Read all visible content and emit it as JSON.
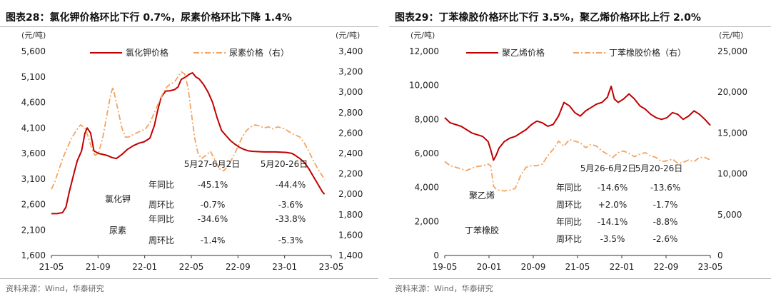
{
  "chart_data": [
    {
      "type": "line",
      "title": "图表28：氯化钾价格环比下行 0.7%，尿素价格环比下降 1.4%",
      "source": "资料来源：Wind，华泰研究",
      "y_unit_left": "(元/吨)",
      "y_unit_right": "(元/吨)",
      "ylim_left": [
        1600,
        5600
      ],
      "ylim_right": [
        1400,
        3400
      ],
      "yticks_left": [
        "1,600",
        "2,100",
        "2,600",
        "3,100",
        "3,600",
        "4,100",
        "4,600",
        "5,100",
        "5,600"
      ],
      "yticks_right": [
        "1,400",
        "1,600",
        "1,800",
        "2,000",
        "2,200",
        "2,400",
        "2,600",
        "2,800",
        "3,000",
        "3,200",
        "3,400"
      ],
      "xticks": [
        "21-05",
        "21-09",
        "22-01",
        "22-05",
        "22-09",
        "23-01",
        "23-05"
      ],
      "x_range_months": [
        0,
        25
      ],
      "series": [
        {
          "name": "氯化钾价格",
          "axis": "left",
          "style": "solid",
          "color": "#c00000",
          "points": [
            [
              0,
              2420
            ],
            [
              0.5,
              2420
            ],
            [
              1,
              2440
            ],
            [
              1.3,
              2550
            ],
            [
              1.6,
              2850
            ],
            [
              2,
              3200
            ],
            [
              2.3,
              3450
            ],
            [
              2.7,
              3650
            ],
            [
              3,
              4000
            ],
            [
              3.2,
              4100
            ],
            [
              3.5,
              4000
            ],
            [
              3.8,
              3650
            ],
            [
              4.2,
              3600
            ],
            [
              4.6,
              3580
            ],
            [
              5,
              3560
            ],
            [
              5.4,
              3520
            ],
            [
              5.8,
              3500
            ],
            [
              6.3,
              3580
            ],
            [
              6.8,
              3680
            ],
            [
              7.3,
              3750
            ],
            [
              7.8,
              3800
            ],
            [
              8.3,
              3830
            ],
            [
              8.8,
              3900
            ],
            [
              9.2,
              4150
            ],
            [
              9.5,
              4450
            ],
            [
              9.8,
              4700
            ],
            [
              10.2,
              4820
            ],
            [
              10.6,
              4830
            ],
            [
              11,
              4850
            ],
            [
              11.3,
              4900
            ],
            [
              11.6,
              5050
            ],
            [
              12,
              5100
            ],
            [
              12.3,
              5150
            ],
            [
              12.6,
              5180
            ],
            [
              12.9,
              5100
            ],
            [
              13.2,
              5060
            ],
            [
              13.6,
              4950
            ],
            [
              14,
              4800
            ],
            [
              14.4,
              4600
            ],
            [
              14.8,
              4300
            ],
            [
              15.2,
              4050
            ],
            [
              15.6,
              3950
            ],
            [
              16,
              3850
            ],
            [
              16.4,
              3780
            ],
            [
              16.8,
              3720
            ],
            [
              17.2,
              3680
            ],
            [
              17.6,
              3650
            ],
            [
              18,
              3640
            ],
            [
              19,
              3630
            ],
            [
              20,
              3630
            ],
            [
              21,
              3620
            ],
            [
              21.5,
              3600
            ],
            [
              21.8,
              3560
            ],
            [
              22.2,
              3500
            ],
            [
              22.6,
              3420
            ],
            [
              23,
              3300
            ],
            [
              23.4,
              3150
            ],
            [
              23.8,
              3000
            ],
            [
              24.2,
              2850
            ],
            [
              24.4,
              2800
            ]
          ]
        },
        {
          "name": "尿素价格（右）",
          "axis": "right",
          "style": "dashdot",
          "color": "#f4a460",
          "points": [
            [
              0,
              2050
            ],
            [
              0.3,
              2120
            ],
            [
              0.7,
              2250
            ],
            [
              1,
              2350
            ],
            [
              1.4,
              2450
            ],
            [
              1.8,
              2550
            ],
            [
              2.2,
              2620
            ],
            [
              2.6,
              2680
            ],
            [
              3,
              2650
            ],
            [
              3.3,
              2560
            ],
            [
              3.6,
              2450
            ],
            [
              3.9,
              2380
            ],
            [
              4.2,
              2400
            ],
            [
              4.6,
              2560
            ],
            [
              5,
              2800
            ],
            [
              5.3,
              2980
            ],
            [
              5.5,
              3050
            ],
            [
              5.7,
              2950
            ],
            [
              6,
              2800
            ],
            [
              6.3,
              2650
            ],
            [
              6.6,
              2560
            ],
            [
              6.9,
              2560
            ],
            [
              7.2,
              2580
            ],
            [
              7.6,
              2600
            ],
            [
              8,
              2620
            ],
            [
              8.4,
              2640
            ],
            [
              8.8,
              2700
            ],
            [
              9.2,
              2800
            ],
            [
              9.6,
              2900
            ],
            [
              10,
              3000
            ],
            [
              10.3,
              3050
            ],
            [
              10.6,
              3080
            ],
            [
              11,
              3100
            ],
            [
              11.3,
              3150
            ],
            [
              11.6,
              3200
            ],
            [
              11.9,
              3180
            ],
            [
              12.2,
              3050
            ],
            [
              12.5,
              2800
            ],
            [
              12.8,
              2550
            ],
            [
              13.1,
              2400
            ],
            [
              13.4,
              2350
            ],
            [
              13.8,
              2380
            ],
            [
              14.2,
              2420
            ],
            [
              14.6,
              2340
            ],
            [
              15,
              2250
            ],
            [
              15.4,
              2230
            ],
            [
              15.8,
              2280
            ],
            [
              16.2,
              2360
            ],
            [
              16.6,
              2450
            ],
            [
              17,
              2550
            ],
            [
              17.4,
              2620
            ],
            [
              17.8,
              2660
            ],
            [
              18.2,
              2680
            ],
            [
              18.6,
              2670
            ],
            [
              19,
              2650
            ],
            [
              19.4,
              2660
            ],
            [
              19.8,
              2640
            ],
            [
              20.2,
              2660
            ],
            [
              20.6,
              2650
            ],
            [
              21,
              2630
            ],
            [
              21.4,
              2600
            ],
            [
              21.8,
              2580
            ],
            [
              22.2,
              2560
            ],
            [
              22.6,
              2500
            ],
            [
              23,
              2420
            ],
            [
              23.4,
              2330
            ],
            [
              23.8,
              2250
            ],
            [
              24.2,
              2180
            ],
            [
              24.4,
              2140
            ]
          ]
        }
      ],
      "legend": [
        "氯化钾价格",
        "尿素价格（右）"
      ],
      "table": {
        "periods": [
          "5月27-6月2日",
          "5月20-26日"
        ],
        "rows": [
          {
            "product": "氯化钾",
            "metric": "年同比",
            "values": [
              "-45.1%",
              "-44.4%"
            ]
          },
          {
            "product": "",
            "metric": "周环比",
            "values": [
              "-0.7%",
              "-3.6%"
            ]
          },
          {
            "product": "尿素",
            "metric": "年同比",
            "values": [
              "-34.6%",
              "-33.8%"
            ]
          },
          {
            "product": "",
            "metric": "周环比",
            "values": [
              "-1.4%",
              "-5.3%"
            ]
          }
        ]
      }
    },
    {
      "type": "line",
      "title": "图表29：丁苯橡胶价格环比下行 3.5%，聚乙烯价格环比上行 2.0%",
      "source": "资料来源：Wind，华泰研究",
      "y_unit_left": "(元/吨)",
      "y_unit_right": "(元/吨)",
      "ylim_left": [
        0,
        12000
      ],
      "ylim_right": [
        0,
        25000
      ],
      "yticks_left": [
        "0",
        "2,000",
        "4,000",
        "6,000",
        "8,000",
        "10,000",
        "12,000"
      ],
      "yticks_right": [
        "0",
        "5,000",
        "10,000",
        "15,000",
        "20,000",
        "25,000"
      ],
      "xticks": [
        "19-05",
        "20-01",
        "20-09",
        "21-05",
        "22-01",
        "22-09",
        "23-05"
      ],
      "x_range_months": [
        0,
        49
      ],
      "series": [
        {
          "name": "聚乙烯价格",
          "axis": "left",
          "style": "solid",
          "color": "#c00000",
          "points": [
            [
              0,
              8100
            ],
            [
              1,
              7800
            ],
            [
              2,
              7700
            ],
            [
              3,
              7600
            ],
            [
              4,
              7400
            ],
            [
              5,
              7200
            ],
            [
              6,
              7100
            ],
            [
              7,
              7000
            ],
            [
              8,
              6700
            ],
            [
              8.5,
              6200
            ],
            [
              9,
              5600
            ],
            [
              9.5,
              5900
            ],
            [
              10,
              6300
            ],
            [
              11,
              6700
            ],
            [
              12,
              6900
            ],
            [
              13,
              7000
            ],
            [
              14,
              7200
            ],
            [
              15,
              7400
            ],
            [
              16,
              7700
            ],
            [
              17,
              7900
            ],
            [
              18,
              7800
            ],
            [
              19,
              7600
            ],
            [
              20,
              7700
            ],
            [
              21,
              8200
            ],
            [
              22,
              9000
            ],
            [
              23,
              8800
            ],
            [
              24,
              8400
            ],
            [
              25,
              8200
            ],
            [
              26,
              8500
            ],
            [
              27,
              8700
            ],
            [
              28,
              8900
            ],
            [
              29,
              9000
            ],
            [
              30,
              9300
            ],
            [
              30.7,
              9950
            ],
            [
              31.3,
              9200
            ],
            [
              32,
              9000
            ],
            [
              33,
              9200
            ],
            [
              34,
              9500
            ],
            [
              35,
              9200
            ],
            [
              36,
              8800
            ],
            [
              37,
              8600
            ],
            [
              38,
              8300
            ],
            [
              39,
              8100
            ],
            [
              40,
              8000
            ],
            [
              41,
              8100
            ],
            [
              42,
              8400
            ],
            [
              43,
              8300
            ],
            [
              44,
              8000
            ],
            [
              45,
              8200
            ],
            [
              46,
              8500
            ],
            [
              47,
              8300
            ],
            [
              48,
              8000
            ],
            [
              49,
              7650
            ]
          ]
        },
        {
          "name": "丁苯橡胶价格（右）",
          "axis": "right",
          "style": "dashdot",
          "color": "#f4a460",
          "points": [
            [
              0,
              11500
            ],
            [
              1,
              11000
            ],
            [
              2,
              10800
            ],
            [
              3,
              10600
            ],
            [
              4,
              10400
            ],
            [
              5,
              10700
            ],
            [
              6,
              10900
            ],
            [
              7,
              11000
            ],
            [
              8,
              11200
            ],
            [
              8.5,
              11000
            ],
            [
              9,
              8500
            ],
            [
              9.5,
              8100
            ],
            [
              10,
              8000
            ],
            [
              11,
              7900
            ],
            [
              12,
              8000
            ],
            [
              13,
              8200
            ],
            [
              14,
              9800
            ],
            [
              15,
              10800
            ],
            [
              16,
              11000
            ],
            [
              17,
              11000
            ],
            [
              18,
              11200
            ],
            [
              19,
              12200
            ],
            [
              20,
              13000
            ],
            [
              21,
              14000
            ],
            [
              22,
              13400
            ],
            [
              23,
              14200
            ],
            [
              24,
              14000
            ],
            [
              25,
              13800
            ],
            [
              26,
              13200
            ],
            [
              27,
              13600
            ],
            [
              28,
              13400
            ],
            [
              29,
              12800
            ],
            [
              30,
              12400
            ],
            [
              31,
              12000
            ],
            [
              32,
              12600
            ],
            [
              33,
              12800
            ],
            [
              34,
              12500
            ],
            [
              35,
              12100
            ],
            [
              36,
              12400
            ],
            [
              37,
              12600
            ],
            [
              38,
              12200
            ],
            [
              39,
              12000
            ],
            [
              40,
              11500
            ],
            [
              41,
              11600
            ],
            [
              42,
              11800
            ],
            [
              43,
              11300
            ],
            [
              44,
              11400
            ],
            [
              45,
              11700
            ],
            [
              46,
              11500
            ],
            [
              47,
              12000
            ],
            [
              48,
              12000
            ],
            [
              49,
              11700
            ]
          ]
        }
      ],
      "legend": [
        "聚乙烯价格",
        "丁苯橡胶价格（右）"
      ],
      "table": {
        "periods": [
          "5月26-6月2日",
          "5月20-26日"
        ],
        "rows": [
          {
            "product": "聚乙烯",
            "metric": "年同比",
            "values": [
              "-14.6%",
              "-13.6%"
            ]
          },
          {
            "product": "",
            "metric": "周环比",
            "values": [
              "+2.0%",
              "-1.7%"
            ]
          },
          {
            "product": "丁苯橡胶",
            "metric": "年同比",
            "values": [
              "-14.1%",
              "-8.8%"
            ]
          },
          {
            "product": "",
            "metric": "周环比",
            "values": [
              "-3.5%",
              "-2.6%"
            ]
          }
        ]
      }
    }
  ]
}
